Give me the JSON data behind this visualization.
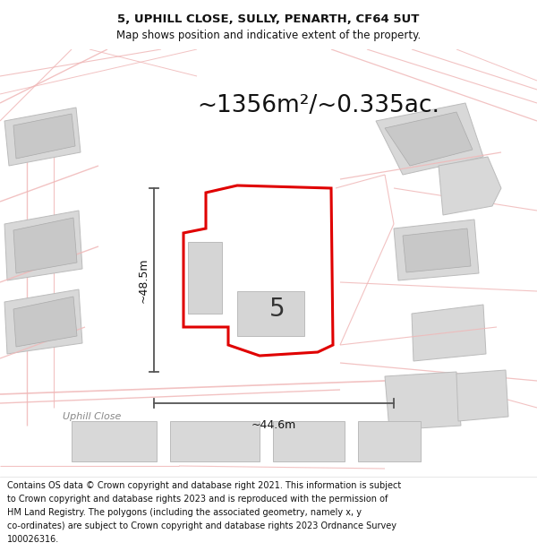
{
  "title_line1": "5, UPHILL CLOSE, SULLY, PENARTH, CF64 5UT",
  "title_line2": "Map shows position and indicative extent of the property.",
  "area_text": "~1356m²/~0.335ac.",
  "footer_lines": [
    "Contains OS data © Crown copyright and database right 2021. This information is subject",
    "to Crown copyright and database rights 2023 and is reproduced with the permission of",
    "HM Land Registry. The polygons (including the associated geometry, namely x, y",
    "co-ordinates) are subject to Crown copyright and database rights 2023 Ordnance Survey",
    "100026316."
  ],
  "dim_label_width": "~44.6m",
  "dim_label_height": "~48.5m",
  "number_label": "5",
  "street_label": "Uphill Close",
  "bg_color": "#ffffff",
  "map_bg_color": "#fafafa",
  "pink_line_color": "#f0b8b8",
  "dim_line_color": "#555555",
  "red_color": "#e00000",
  "gray_fill": "#d8d8d8",
  "gray_edge": "#bbbbbb",
  "white_fill": "#ffffff",
  "prop_fill": "#ffffff",
  "title_fontsize": 9.5,
  "subtitle_fontsize": 8.5,
  "area_fontsize": 19,
  "footer_fontsize": 7.0,
  "number_fontsize": 20,
  "street_fontsize": 8,
  "dim_fontsize": 9
}
